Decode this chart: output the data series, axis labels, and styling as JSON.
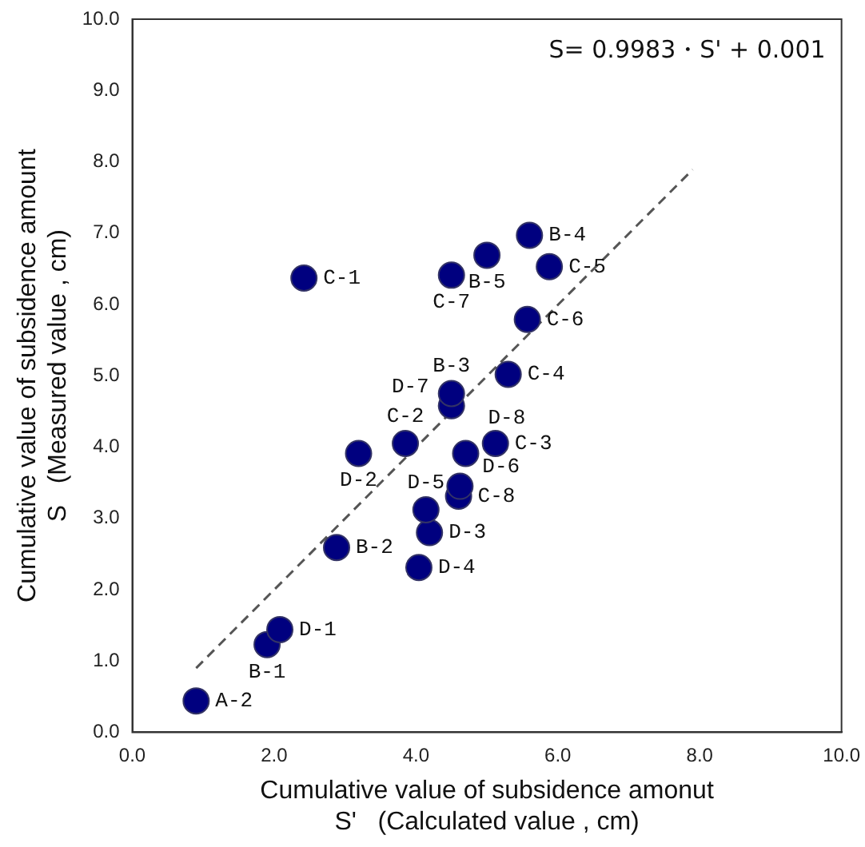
{
  "chart_data": {
    "type": "scatter",
    "xlabel": "Cumulative value of subsidence amonut\nS'   (Calculated value , cm)",
    "ylabel": "Cumulative value of subsidence amount\nS   (Measured value , cm)",
    "xlim": [
      0,
      10
    ],
    "ylim": [
      0,
      10
    ],
    "xticks": [
      {
        "value": 0,
        "label": "0.0"
      },
      {
        "value": 2,
        "label": "2.0"
      },
      {
        "value": 4,
        "label": "4.0"
      },
      {
        "value": 6,
        "label": "6.0"
      },
      {
        "value": 8,
        "label": "8.0"
      },
      {
        "value": 10,
        "label": "10.0"
      }
    ],
    "yticks": [
      {
        "value": 0,
        "label": "0.0"
      },
      {
        "value": 1,
        "label": "1.0"
      },
      {
        "value": 2,
        "label": "2.0"
      },
      {
        "value": 3,
        "label": "3.0"
      },
      {
        "value": 4,
        "label": "4.0"
      },
      {
        "value": 5,
        "label": "5.0"
      },
      {
        "value": 6,
        "label": "6.0"
      },
      {
        "value": 7,
        "label": "7.0"
      },
      {
        "value": 8,
        "label": "8.0"
      },
      {
        "value": 9,
        "label": "9.0"
      },
      {
        "value": 10,
        "label": "10.0"
      }
    ],
    "grid": false,
    "legend": false,
    "marker": "circle",
    "series": [
      {
        "type": "scatter",
        "color": "#00007f",
        "x": [
          0.9,
          1.9,
          2.08,
          2.88,
          4.04,
          4.19,
          4.14,
          4.6,
          4.62,
          3.19,
          3.85,
          4.7,
          5.12,
          4.5,
          4.5,
          5.3,
          5.57,
          5.88,
          5.6,
          5.0,
          4.5,
          2.42
        ],
        "values": [
          0.44,
          1.23,
          1.44,
          2.59,
          2.31,
          2.8,
          3.12,
          3.31,
          3.45,
          3.91,
          4.05,
          3.91,
          4.05,
          4.58,
          4.75,
          5.02,
          5.79,
          6.53,
          6.97,
          6.69,
          6.41,
          6.37
        ],
        "value_labels": [
          "A-2",
          "B-1",
          "D-1",
          "B-2",
          "D-4",
          "D-3",
          "D-5",
          "C-8",
          "D-6",
          "D-2",
          "C-2",
          "D-8",
          "C-3",
          "D-7",
          "B-3",
          "C-4",
          "C-6",
          "C-5",
          "B-4",
          "B-5",
          "C-7",
          "C-1"
        ]
      },
      {
        "type": "line",
        "color": "#555555",
        "line_style": "dashed",
        "marker": "none",
        "x": [
          0.9,
          7.9
        ],
        "values": [
          0.9,
          7.89
        ]
      }
    ],
    "annotations": [
      "S= 0.9983・S' + 0.001"
    ]
  }
}
